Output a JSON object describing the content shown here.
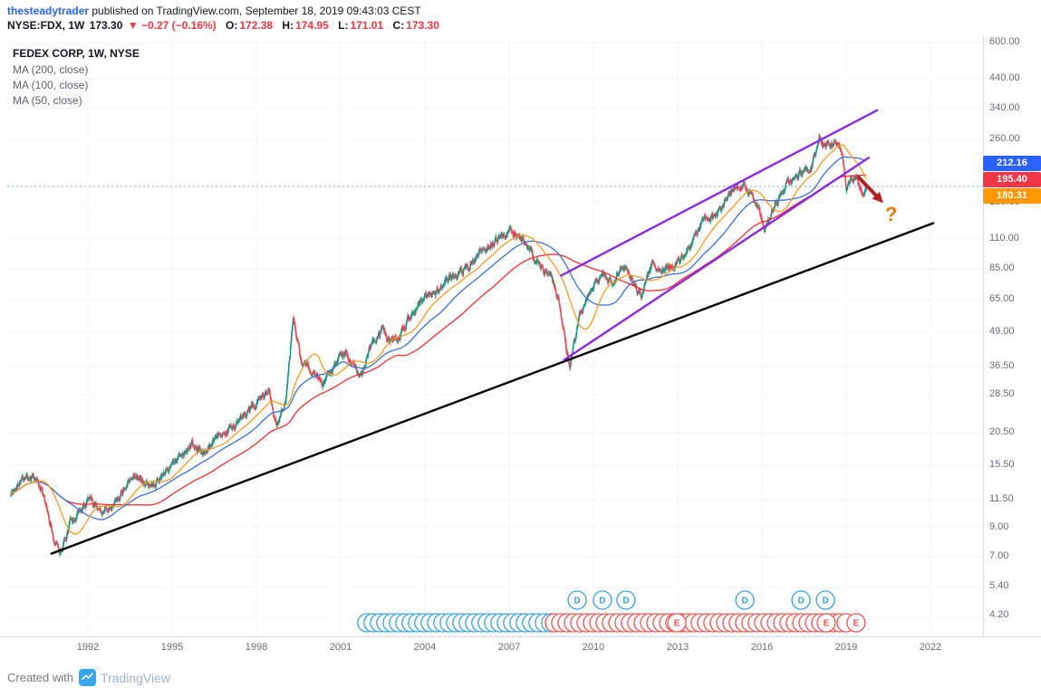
{
  "header": {
    "byline": {
      "author": "thesteadytrader",
      "rest": " published on TradingView.com, September 18, 2019 09:43:03 CEST"
    },
    "symbol_line": {
      "symbol": "NYSE:FDX, 1W",
      "last": "173.30",
      "change": "▼ −0.27 (−0.16%)",
      "o_label": "O:",
      "o": "172.38",
      "h_label": "H:",
      "h": "174.95",
      "l_label": "L:",
      "l": "171.01",
      "c_label": "C:",
      "c": "173.30"
    }
  },
  "legend": {
    "title": "FEDEX CORP, 1W, NYSE",
    "indicators": [
      "MA (200, close)",
      "MA (100, close)",
      "MA (50, close)"
    ]
  },
  "price_labels": {
    "ma100": {
      "text": "212.16",
      "color": "#2962ff"
    },
    "ma200": {
      "text": "195.40",
      "color": "#f23645"
    },
    "ma50": {
      "text": "180.31",
      "color": "#ff9800"
    }
  },
  "axis": {
    "price_ticks": [
      "600.00",
      "440.00",
      "340.00",
      "260.00",
      "150.00",
      "110.00",
      "85.00",
      "65.00",
      "49.00",
      "36.50",
      "28.50",
      "20.50",
      "15.50",
      "11.50",
      "9.00",
      "7.00",
      "5.40",
      "4.20"
    ],
    "year_ticks": [
      "1992",
      "1995",
      "1998",
      "2001",
      "2004",
      "2007",
      "2010",
      "2013",
      "2016",
      "2019",
      "2022"
    ]
  },
  "footer": {
    "created_with": "Created with",
    "brand": "TradingView"
  },
  "chart_data": {
    "type": "candlestick",
    "title": "FEDEX CORP, 1W, NYSE",
    "symbol": "NYSE:FDX",
    "timeframe": "1W",
    "scale": "log",
    "x_axis_years": [
      1992,
      1995,
      1998,
      2001,
      2004,
      2007,
      2010,
      2013,
      2016,
      2019,
      2022
    ],
    "y_axis_prices": [
      600,
      440,
      340,
      260,
      150,
      110,
      85,
      65,
      49,
      36.5,
      28.5,
      20.5,
      15.5,
      11.5,
      9,
      7,
      5.4,
      4.2
    ],
    "last_bar": {
      "open": 172.38,
      "high": 174.95,
      "low": 171.01,
      "close": 173.3,
      "change": -0.27,
      "change_pct": -0.16
    },
    "ma_values": {
      "ma50": 180.31,
      "ma100": 212.16,
      "ma200": 195.4
    },
    "candles": {
      "start_year": 1989.25,
      "end_year": 2019.72,
      "interval_years": 0.01923,
      "noise": 0.05,
      "seed": 11,
      "up_color": "#1d8f85",
      "down_color": "#e8494f",
      "last_close": 173.3
    },
    "price_path_anchors": [
      [
        1989.25,
        12.0
      ],
      [
        1989.7,
        13.8
      ],
      [
        1990.1,
        14.3
      ],
      [
        1990.45,
        11.5
      ],
      [
        1990.8,
        8.0
      ],
      [
        1991.05,
        7.4
      ],
      [
        1991.4,
        9.6
      ],
      [
        1991.8,
        10.8
      ],
      [
        1992.1,
        11.6
      ],
      [
        1992.5,
        10.4
      ],
      [
        1993.0,
        11.4
      ],
      [
        1993.6,
        14.6
      ],
      [
        1994.2,
        12.8
      ],
      [
        1994.7,
        14.6
      ],
      [
        1995.2,
        16.6
      ],
      [
        1995.7,
        18.6
      ],
      [
        1996.1,
        17.0
      ],
      [
        1996.6,
        19.6
      ],
      [
        1997.1,
        21.5
      ],
      [
        1997.6,
        23.5
      ],
      [
        1998.0,
        26.5
      ],
      [
        1998.45,
        29.5
      ],
      [
        1998.7,
        21.5
      ],
      [
        1999.05,
        27.5
      ],
      [
        1999.3,
        56.0
      ],
      [
        1999.55,
        40.0
      ],
      [
        2000.0,
        34.0
      ],
      [
        2000.4,
        31.0
      ],
      [
        2000.85,
        38.0
      ],
      [
        2001.2,
        41.0
      ],
      [
        2001.7,
        33.0
      ],
      [
        2002.1,
        44.0
      ],
      [
        2002.5,
        50.0
      ],
      [
        2002.85,
        45.0
      ],
      [
        2003.1,
        47.0
      ],
      [
        2003.6,
        60.0
      ],
      [
        2004.0,
        66.0
      ],
      [
        2004.5,
        72.0
      ],
      [
        2005.0,
        80.0
      ],
      [
        2005.5,
        85.0
      ],
      [
        2006.0,
        98.0
      ],
      [
        2006.5,
        108.0
      ],
      [
        2007.1,
        117.0
      ],
      [
        2007.5,
        108.0
      ],
      [
        2008.0,
        90.0
      ],
      [
        2008.5,
        80.0
      ],
      [
        2008.8,
        62.0
      ],
      [
        2009.15,
        35.5
      ],
      [
        2009.5,
        55.0
      ],
      [
        2009.9,
        72.0
      ],
      [
        2010.3,
        80.0
      ],
      [
        2010.7,
        76.0
      ],
      [
        2011.1,
        88.0
      ],
      [
        2011.7,
        66.0
      ],
      [
        2012.1,
        88.0
      ],
      [
        2012.5,
        84.0
      ],
      [
        2012.9,
        88.0
      ],
      [
        2013.4,
        100.0
      ],
      [
        2013.9,
        130.0
      ],
      [
        2014.4,
        135.0
      ],
      [
        2014.9,
        165.0
      ],
      [
        2015.35,
        177.0
      ],
      [
        2015.8,
        150.0
      ],
      [
        2016.1,
        121.0
      ],
      [
        2016.5,
        150.0
      ],
      [
        2016.9,
        178.0
      ],
      [
        2017.3,
        192.0
      ],
      [
        2017.7,
        205.0
      ],
      [
        2017.95,
        235.0
      ],
      [
        2018.05,
        268.0
      ],
      [
        2018.25,
        240.0
      ],
      [
        2018.5,
        250.0
      ],
      [
        2018.7,
        255.0
      ],
      [
        2018.85,
        220.0
      ],
      [
        2019.0,
        165.0
      ],
      [
        2019.15,
        180.0
      ],
      [
        2019.35,
        188.0
      ],
      [
        2019.5,
        168.0
      ],
      [
        2019.6,
        160.0
      ],
      [
        2019.72,
        173.3
      ]
    ],
    "moving_averages": [
      {
        "period": 200,
        "color": "#ef2e31"
      },
      {
        "period": 100,
        "color": "#3a6fd8"
      },
      {
        "period": 50,
        "color": "#f59b23"
      }
    ],
    "trendlines": [
      {
        "name": "long-term-support",
        "color": "#000000",
        "width": 2.4,
        "points": [
          [
            1990.7,
            7.2
          ],
          [
            2022.1,
            126
          ]
        ]
      },
      {
        "name": "channel-upper",
        "color": "#8a2be2",
        "width": 2.4,
        "points": [
          [
            2008.85,
            80
          ],
          [
            2020.1,
            335
          ]
        ]
      },
      {
        "name": "channel-lower",
        "color": "#8a2be2",
        "width": 2.4,
        "points": [
          [
            2008.95,
            38.5
          ],
          [
            2019.8,
            222
          ]
        ]
      }
    ],
    "current_price_line": {
      "price": 173.3,
      "style": "dotted",
      "color": "#7aa6d8"
    },
    "arrow": {
      "from": [
        2019.45,
        187
      ],
      "to": [
        2020.32,
        150
      ],
      "color": "#b22020",
      "width": 4
    },
    "question_mark": {
      "pos": [
        2020.61,
        134.8
      ],
      "text": "?",
      "color": "#e87b00"
    },
    "events": {
      "d_letter": "D",
      "e_letter": "E",
      "d_color": "#36a1dd",
      "e_color": "#ef5350",
      "labeled_d_years": [
        2009.42,
        2010.32,
        2011.16,
        2015.39,
        2017.39,
        2018.26
      ],
      "labeled_e_years": [
        2012.97,
        2018.29,
        2019.35
      ],
      "dividend_band": {
        "start": 2001.93,
        "end": 2008.61
      },
      "earnings_band": {
        "start": 2008.61,
        "end": 2019.03
      },
      "band_step": 0.2258
    }
  }
}
